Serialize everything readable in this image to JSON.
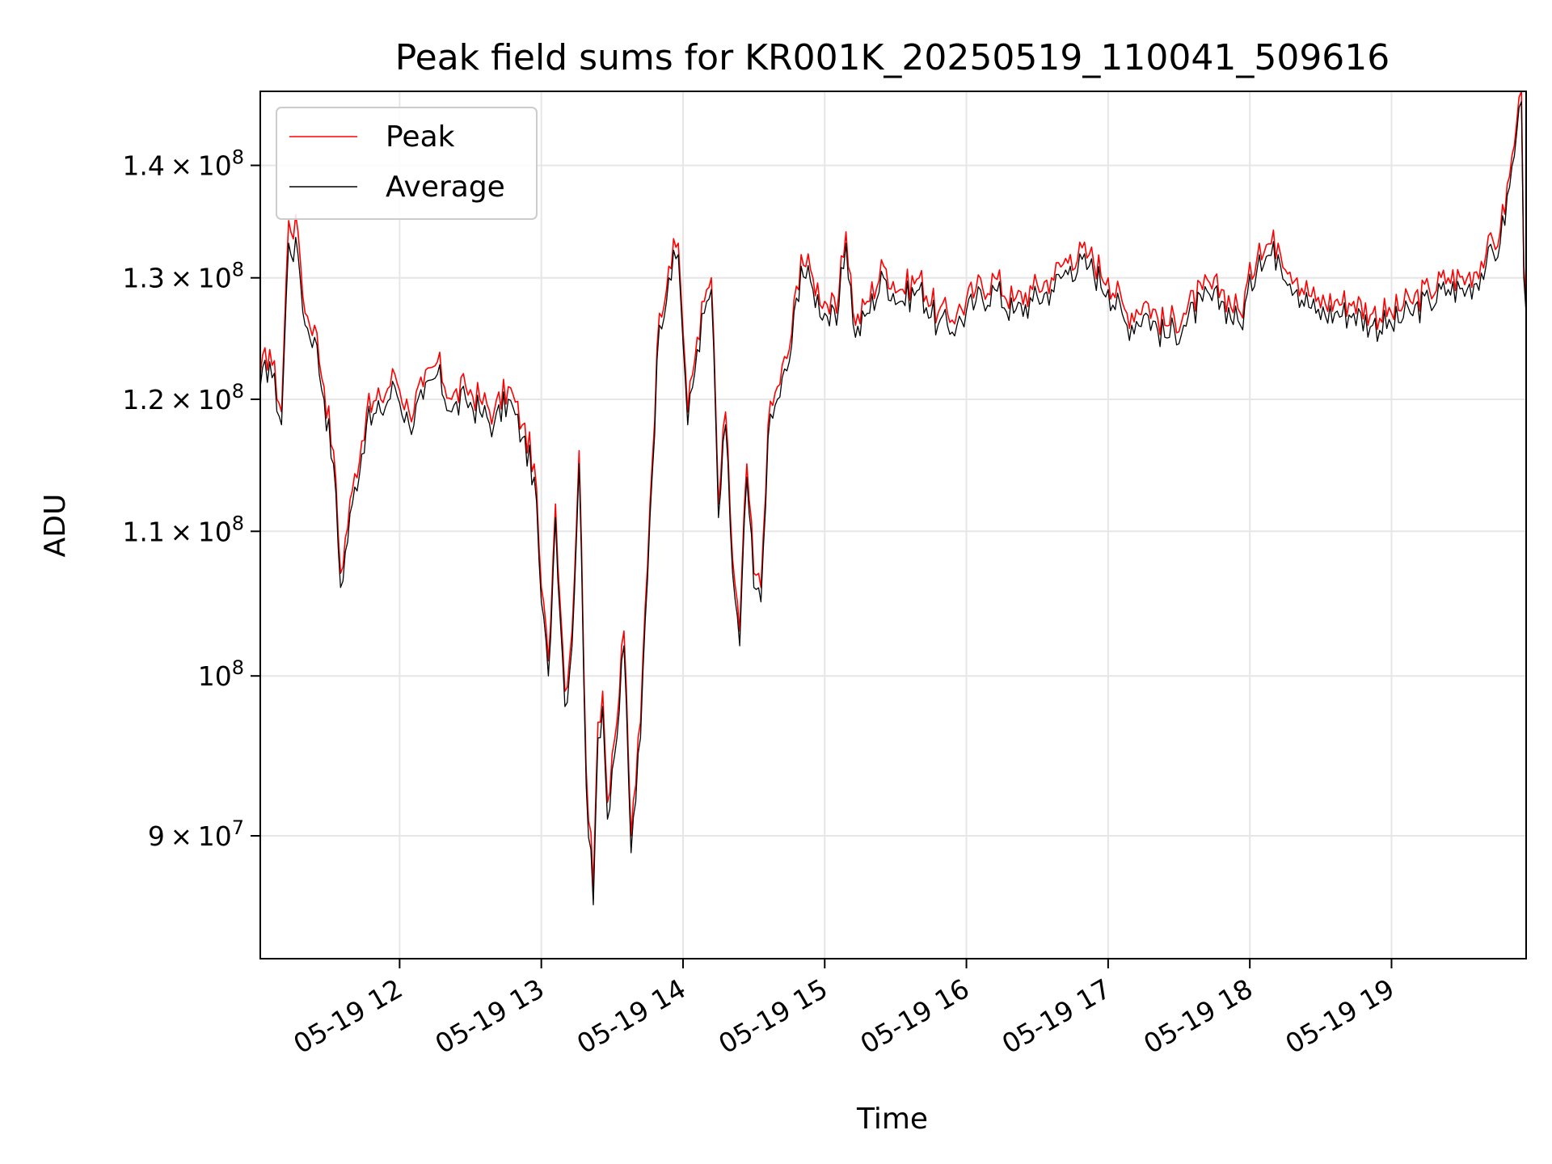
{
  "chart_data": {
    "type": "line",
    "title": "Peak field sums for KR001K_20250519_110041_509616",
    "xlabel": "Time",
    "ylabel": "ADU",
    "yscale": "log",
    "xlim": [
      "2025-05-19 11:01",
      "2025-05-19 19:57"
    ],
    "ylim": [
      83000000,
      147000000
    ],
    "grid": true,
    "legend_position": "upper left",
    "x_ticks": [
      "05-19 12",
      "05-19 13",
      "05-19 14",
      "05-19 15",
      "05-19 16",
      "05-19 17",
      "05-19 18",
      "05-19 19"
    ],
    "y_ticks": [
      {
        "value": 90000000,
        "mantissa": "9",
        "exponent": "7"
      },
      {
        "value": 100000000,
        "mantissa": "",
        "exponent": "8"
      },
      {
        "value": 110000000,
        "mantissa": "1.1",
        "exponent": "8"
      },
      {
        "value": 120000000,
        "mantissa": "1.2",
        "exponent": "8"
      },
      {
        "value": 130000000,
        "mantissa": "1.3",
        "exponent": "8"
      },
      {
        "value": 140000000,
        "mantissa": "1.4",
        "exponent": "8"
      }
    ],
    "series": [
      {
        "name": "Peak",
        "color": "#ff0000",
        "x": [
          "11:01",
          "11:05",
          "11:10",
          "11:13",
          "11:17",
          "11:20",
          "11:24",
          "11:28",
          "11:32",
          "11:35",
          "11:40",
          "11:46",
          "11:52",
          "11:58",
          "12:04",
          "12:10",
          "12:16",
          "12:22",
          "12:28",
          "12:34",
          "12:40",
          "12:46",
          "12:52",
          "12:57",
          "13:00",
          "13:03",
          "13:06",
          "13:10",
          "13:13",
          "13:16",
          "13:19",
          "13:22",
          "13:24",
          "13:26",
          "13:28",
          "13:30",
          "13:32",
          "13:35",
          "13:38",
          "13:42",
          "13:46",
          "13:50",
          "13:54",
          "13:58",
          "14:02",
          "14:06",
          "14:09",
          "14:12",
          "14:15",
          "14:18",
          "14:21",
          "14:24",
          "14:27",
          "14:30",
          "14:33",
          "14:36",
          "14:40",
          "14:45",
          "14:50",
          "14:55",
          "15:00",
          "15:05",
          "15:09",
          "15:13",
          "15:18",
          "15:25",
          "15:32",
          "15:40",
          "15:48",
          "15:56",
          "16:04",
          "16:12",
          "16:20",
          "16:28",
          "16:36",
          "16:44",
          "16:52",
          "17:00",
          "17:08",
          "17:16",
          "17:24",
          "17:32",
          "17:40",
          "17:48",
          "17:56",
          "18:04",
          "18:12",
          "18:20",
          "18:28",
          "18:36",
          "18:44",
          "18:52",
          "19:00",
          "19:08",
          "19:16",
          "19:24",
          "19:32",
          "19:40",
          "19:46",
          "19:50",
          "19:53",
          "19:55",
          "19:56",
          "19:57"
        ],
        "y": [
          122000000,
          124000000,
          119000000,
          135000000,
          134000000,
          127000000,
          126000000,
          121000000,
          116000000,
          107000000,
          113000000,
          119000000,
          120000000,
          122000000,
          119000000,
          121000000,
          123000000,
          120000000,
          121000000,
          120000000,
          119000000,
          121000000,
          118000000,
          115000000,
          106000000,
          101000000,
          112000000,
          99000000,
          103000000,
          116000000,
          94000000,
          87000000,
          97000000,
          99000000,
          92000000,
          95000000,
          97000000,
          103000000,
          90000000,
          97000000,
          112000000,
          127000000,
          131000000,
          133000000,
          119000000,
          125000000,
          128000000,
          130000000,
          112000000,
          119000000,
          108000000,
          103000000,
          115000000,
          107000000,
          106000000,
          118000000,
          121000000,
          124000000,
          132000000,
          130000000,
          128000000,
          127000000,
          134000000,
          126000000,
          128000000,
          131000000,
          129000000,
          130000000,
          127000000,
          127000000,
          129000000,
          130000000,
          128000000,
          129000000,
          130000000,
          132000000,
          132000000,
          130000000,
          127000000,
          128000000,
          126000000,
          127000000,
          129000000,
          129000000,
          127000000,
          133000000,
          133000000,
          130000000,
          128000000,
          128000000,
          128000000,
          127000000,
          127000000,
          128000000,
          129000000,
          130000000,
          130000000,
          132000000,
          134000000,
          139000000,
          144000000,
          147000000,
          131000000,
          128000000
        ]
      },
      {
        "name": "Average",
        "color": "#000000",
        "x": [
          "11:01",
          "11:05",
          "11:10",
          "11:13",
          "11:17",
          "11:20",
          "11:24",
          "11:28",
          "11:32",
          "11:35",
          "11:40",
          "11:46",
          "11:52",
          "11:58",
          "12:04",
          "12:10",
          "12:16",
          "12:22",
          "12:28",
          "12:34",
          "12:40",
          "12:46",
          "12:52",
          "12:57",
          "13:00",
          "13:03",
          "13:06",
          "13:10",
          "13:13",
          "13:16",
          "13:19",
          "13:22",
          "13:24",
          "13:26",
          "13:28",
          "13:30",
          "13:32",
          "13:35",
          "13:38",
          "13:42",
          "13:46",
          "13:50",
          "13:54",
          "13:58",
          "14:02",
          "14:06",
          "14:09",
          "14:12",
          "14:15",
          "14:18",
          "14:21",
          "14:24",
          "14:27",
          "14:30",
          "14:33",
          "14:36",
          "14:40",
          "14:45",
          "14:50",
          "14:55",
          "15:00",
          "15:05",
          "15:09",
          "15:13",
          "15:18",
          "15:25",
          "15:32",
          "15:40",
          "15:48",
          "15:56",
          "16:04",
          "16:12",
          "16:20",
          "16:28",
          "16:36",
          "16:44",
          "16:52",
          "17:00",
          "17:08",
          "17:16",
          "17:24",
          "17:32",
          "17:40",
          "17:48",
          "17:56",
          "18:04",
          "18:12",
          "18:20",
          "18:28",
          "18:36",
          "18:44",
          "18:52",
          "19:00",
          "19:08",
          "19:16",
          "19:24",
          "19:32",
          "19:40",
          "19:46",
          "19:50",
          "19:53",
          "19:55",
          "19:56",
          "19:57"
        ],
        "y": [
          121000000,
          123000000,
          118000000,
          133000000,
          132000000,
          126000000,
          125000000,
          120000000,
          115000000,
          106000000,
          112000000,
          118000000,
          119000000,
          121000000,
          118000000,
          120000000,
          122000000,
          119000000,
          120000000,
          119000000,
          118000000,
          120000000,
          117000000,
          114000000,
          105000000,
          100000000,
          111000000,
          98000000,
          102000000,
          115000000,
          93000000,
          86000000,
          96000000,
          98000000,
          91000000,
          94000000,
          96000000,
          102000000,
          89000000,
          96000000,
          111000000,
          126000000,
          130000000,
          132000000,
          118000000,
          124000000,
          127000000,
          129000000,
          111000000,
          118000000,
          107000000,
          102000000,
          114000000,
          106000000,
          105000000,
          117000000,
          120000000,
          123000000,
          131000000,
          129000000,
          127000000,
          126000000,
          133000000,
          125000000,
          127000000,
          130000000,
          128000000,
          129000000,
          126000000,
          126000000,
          128000000,
          129000000,
          127000000,
          128000000,
          129000000,
          131000000,
          131000000,
          129000000,
          126000000,
          127000000,
          125000000,
          126000000,
          128000000,
          128000000,
          126000000,
          132000000,
          132000000,
          129000000,
          127000000,
          127000000,
          127000000,
          126000000,
          126000000,
          127000000,
          128000000,
          129000000,
          129000000,
          131000000,
          133000000,
          138000000,
          143000000,
          146000000,
          130000000,
          127000000
        ]
      }
    ]
  }
}
